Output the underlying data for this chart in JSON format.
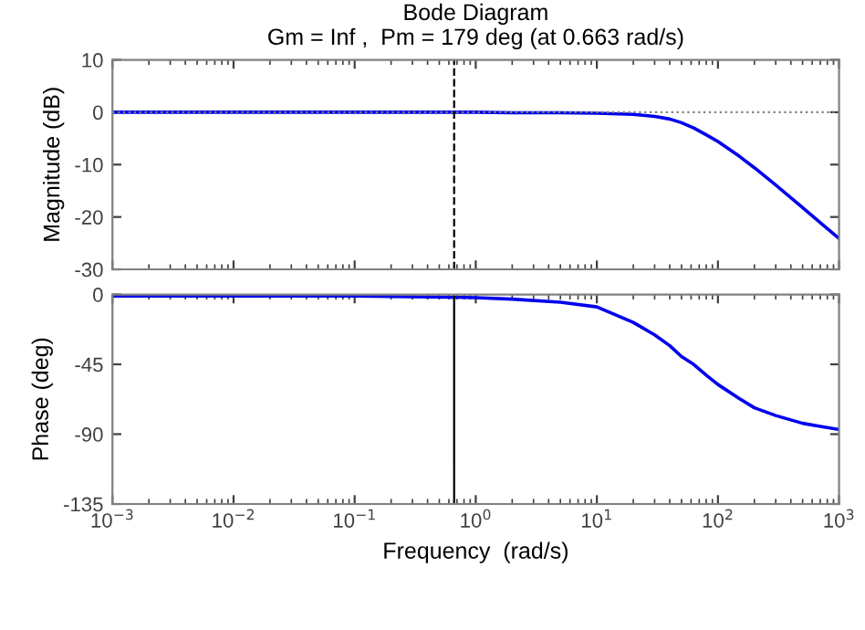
{
  "chart_data": [
    {
      "type": "line",
      "title": "Bode Diagram\nGm = Inf ,  Pm = 179 deg (at 0.663 rad/s)",
      "ylabel": "Magnitude (dB)",
      "log": "x",
      "grid": false,
      "tick_labels": "y",
      "x": [
        0.001,
        0.01,
        0.1,
        1,
        2,
        5,
        10,
        20,
        30,
        40,
        50,
        63,
        80,
        100,
        150,
        200,
        300,
        500,
        700,
        1000
      ],
      "series": [
        {
          "color": "#0000ee",
          "values": [
            0,
            0,
            0,
            0,
            -0.1,
            -0.1,
            -0.2,
            -0.4,
            -0.8,
            -1.3,
            -2,
            -3,
            -4.3,
            -5.6,
            -8.4,
            -10.6,
            -13.9,
            -18.2,
            -21.1,
            -24.1
          ]
        }
      ],
      "xlim": [
        0.001,
        1000
      ],
      "xticks": [
        {
          "value": 0.001,
          "label": null
        },
        {
          "value": 0.01,
          "label": null
        },
        {
          "value": 0.1,
          "label": null
        },
        {
          "value": 1,
          "label": null
        },
        {
          "value": 10,
          "label": null
        },
        {
          "value": 100,
          "label": null
        },
        {
          "value": 1000,
          "label": null
        }
      ],
      "ylim": [
        -30,
        10
      ],
      "yticks": [
        -30,
        -20,
        -10,
        0,
        10
      ],
      "ref_lines": [
        {
          "axis": "y",
          "value": 0,
          "color": "#808080",
          "line_style": "dotted"
        },
        {
          "axis": "x",
          "value": 0.663,
          "color": "#000000",
          "line_style": "dashed"
        }
      ]
    },
    {
      "type": "line",
      "xlabel": "Frequency  (rad/s)",
      "ylabel": "Phase (deg)",
      "log": "x",
      "grid": false,
      "x": [
        0.001,
        0.01,
        0.1,
        1,
        2,
        5,
        10,
        20,
        30,
        40,
        50,
        63,
        80,
        100,
        150,
        200,
        300,
        500,
        700,
        1000
      ],
      "series": [
        {
          "color": "#0000ee",
          "values": [
            -1,
            -1,
            -1,
            -2,
            -3,
            -5,
            -8,
            -18,
            -26,
            -33,
            -40,
            -45,
            -52,
            -58,
            -67,
            -73,
            -78,
            -83,
            -85,
            -87
          ]
        }
      ],
      "xlim": [
        0.001,
        1000
      ],
      "xticks": [
        {
          "value": 0.001,
          "label": "10$^{−3}$"
        },
        {
          "value": 0.01,
          "label": "10$^{−2}$"
        },
        {
          "value": 0.1,
          "label": "10$^{−1}$"
        },
        {
          "value": 1,
          "label": "10$^{0}$"
        },
        {
          "value": 10,
          "label": "10$^{1}$"
        },
        {
          "value": 100,
          "label": "10$^{2}$"
        },
        {
          "value": 1000,
          "label": "10$^{3}$"
        }
      ],
      "ylim": [
        -135,
        0
      ],
      "yticks": [
        -135,
        -90,
        -45,
        0
      ],
      "ref_lines": [
        {
          "axis": "x",
          "value": 0.663,
          "color": "#000000",
          "line_style": "solid"
        }
      ]
    }
  ]
}
